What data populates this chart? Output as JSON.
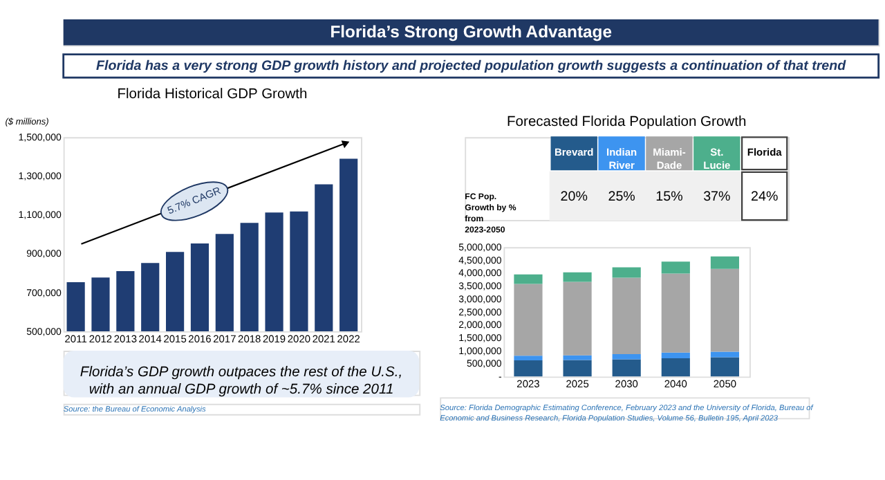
{
  "chart_data": [
    {
      "type": "bar",
      "title": "Florida’s Strong Growth Advantage",
      "subtitle": "Florida has a very strong GDP growth history and projected population growth suggests a continuation of that trend",
      "ylabel": "($ millions)",
      "categories": [
        "2011",
        "2012",
        "2013",
        "2014",
        "2015",
        "2016",
        "2017",
        "2018",
        "2019",
        "2020",
        "2021",
        "2022"
      ],
      "values": [
        753000,
        777000,
        810000,
        852000,
        909000,
        952000,
        1001000,
        1058000,
        1112000,
        1117000,
        1257000,
        1389000
      ],
      "color": "#1f3d73",
      "ylim": [
        500000,
        1500000
      ],
      "yticks": [
        {
          "value": 500000,
          "label": "500,000"
        },
        {
          "value": 700000,
          "label": "700,000"
        },
        {
          "value": 900000,
          "label": "900,000"
        },
        {
          "value": 1100000,
          "label": "1,100,000"
        },
        {
          "value": 1300000,
          "label": "1,300,000"
        },
        {
          "value": 1500000,
          "label": "1,500,000"
        }
      ],
      "grid": false,
      "annotations": [
        "Florida Historical GDP Growth",
        "5.7% CAGR",
        "Florida’s GDP growth outpaces the rest of the U.S., with an annual GDP growth of ~5.7% since 2011",
        "Source: the Bureau of Economic Analysis"
      ]
    },
    {
      "type": "other",
      "title": "Forecasted Florida Population Growth",
      "ylabel": "FC Pop. Growth by % from 2023-2050",
      "categories": [
        "Brevard",
        "Indian River",
        "Miami-Dade",
        "St. Lucie",
        "Florida"
      ],
      "value_labels": [
        "20%",
        "25%",
        "15%",
        "37%",
        "24%"
      ],
      "colors": [
        "#245b8c",
        "#3d94f0",
        "#a6a6a6",
        "#4daf8c",
        "#ffffff"
      ]
    },
    {
      "type": "bar",
      "stacked": true,
      "categories": [
        "2023",
        "2025",
        "2030",
        "2040",
        "2050"
      ],
      "ylim": [
        0,
        5000000
      ],
      "yticks": [
        {
          "value": 0,
          "label": "-"
        },
        {
          "value": 500000,
          "label": "500,000"
        },
        {
          "value": 1000000,
          "label": "1,000,000"
        },
        {
          "value": 1500000,
          "label": "1,500,000"
        },
        {
          "value": 2000000,
          "label": "2,000,000"
        },
        {
          "value": 2500000,
          "label": "2,500,000"
        },
        {
          "value": 3000000,
          "label": "3,000,000"
        },
        {
          "value": 3500000,
          "label": "3,500,000"
        },
        {
          "value": 4000000,
          "label": "4,000,000"
        },
        {
          "value": 4500000,
          "label": "4,500,000"
        },
        {
          "value": 5000000,
          "label": "5,000,000"
        }
      ],
      "grid": false,
      "legend": false,
      "series": [
        {
          "color": "#245b8c",
          "values": [
            630000,
            640000,
            670000,
            710000,
            750000
          ]
        },
        {
          "color": "#3d94f0",
          "values": [
            180000,
            180000,
            200000,
            220000,
            210000
          ]
        },
        {
          "color": "#a6a6a6",
          "values": [
            2770000,
            2840000,
            2950000,
            3050000,
            3200000
          ]
        },
        {
          "color": "#4daf8c",
          "values": [
            370000,
            370000,
            400000,
            460000,
            480000
          ]
        }
      ],
      "annotations": [
        "Source: Florida Demographic Estimating Conference, February 2023 and the University of Florida, Bureau of Economic and Business Research, Florida Population Studies, Volume 56, Bulletin 195, April 2023"
      ]
    }
  ]
}
